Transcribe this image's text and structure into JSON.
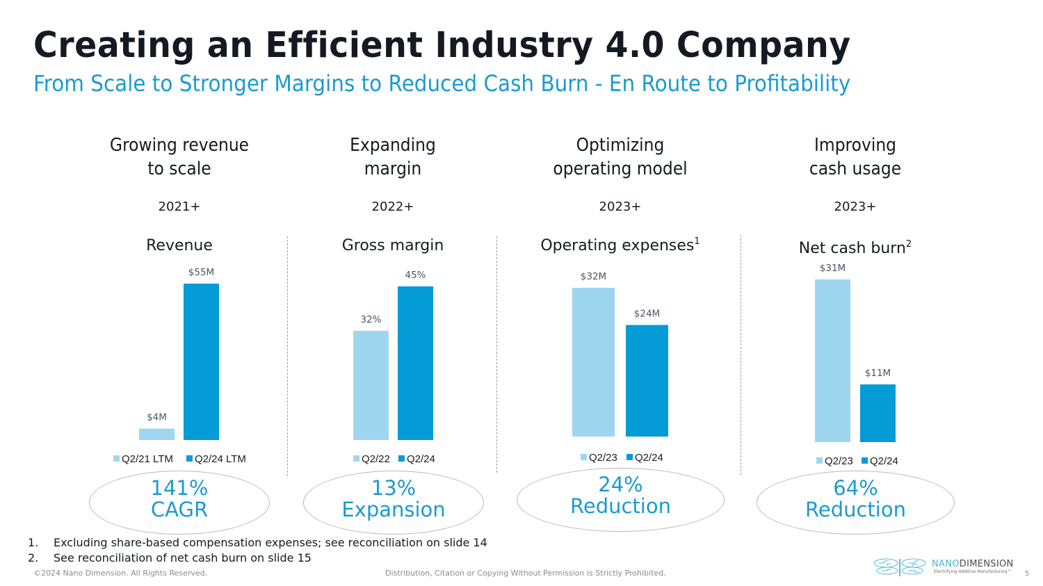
{
  "header": {
    "title": "Creating an Efficient Industry 4.0 Company",
    "subtitle": "From Scale to Stronger Margins to Reduced Cash Burn - En Route to Profitability"
  },
  "colors": {
    "accent": "#1b9ad1",
    "bar_prior": "#9fd6ef",
    "bar_current": "#049bd6",
    "title": "#141a22"
  },
  "columns": [
    {
      "heading_line1": "Growing revenue",
      "heading_line2": "to scale",
      "year": "2021+",
      "metric": "Revenue",
      "metric_sup": "",
      "callout_line1": "141%",
      "callout_line2": "CAGR"
    },
    {
      "heading_line1": "Expanding",
      "heading_line2": "margin",
      "year": "2022+",
      "metric": "Gross margin",
      "metric_sup": "",
      "callout_line1": "13%",
      "callout_line2": "Expansion"
    },
    {
      "heading_line1": "Optimizing",
      "heading_line2": "operating model",
      "year": "2023+",
      "metric": "Operating expenses",
      "metric_sup": "1",
      "callout_line1": "24%",
      "callout_line2": "Reduction"
    },
    {
      "heading_line1": "Improving",
      "heading_line2": "cash usage",
      "year": "2023+",
      "metric": "Net cash burn",
      "metric_sup": "2",
      "callout_line1": "64%",
      "callout_line2": "Reduction"
    }
  ],
  "chart_data": [
    {
      "type": "bar",
      "title": "Revenue",
      "categories": [
        "Q2/21 LTM",
        "Q2/24 LTM"
      ],
      "values": [
        4,
        55
      ],
      "labels": [
        "$4M",
        "$55M"
      ],
      "unit": "$M",
      "ylim": [
        0,
        55
      ],
      "legend": "bottom",
      "grid": false
    },
    {
      "type": "bar",
      "title": "Gross margin",
      "categories": [
        "Q2/22",
        "Q2/24"
      ],
      "values": [
        32,
        45
      ],
      "labels": [
        "32%",
        "45%"
      ],
      "unit": "%",
      "ylim": [
        0,
        45
      ],
      "legend": "bottom",
      "grid": false
    },
    {
      "type": "bar",
      "title": "Operating expenses",
      "categories": [
        "Q2/23",
        "Q2/24"
      ],
      "values": [
        32,
        24
      ],
      "labels": [
        "$32M",
        "$24M"
      ],
      "unit": "$M",
      "ylim": [
        0,
        32
      ],
      "legend": "bottom",
      "grid": false
    },
    {
      "type": "bar",
      "title": "Net cash burn",
      "categories": [
        "Q2/23",
        "Q2/24"
      ],
      "values": [
        31,
        11
      ],
      "labels": [
        "$31M",
        "$11M"
      ],
      "unit": "$M",
      "ylim": [
        0,
        31
      ],
      "legend": "bottom",
      "grid": false
    }
  ],
  "footnotes": [
    {
      "num": "1.",
      "text": "Excluding share-based compensation expenses; see reconciliation on slide 14"
    },
    {
      "num": "2.",
      "text": "See reconciliation of net cash burn on slide 15"
    }
  ],
  "footer": {
    "copyright": "©2024 Nano Dimension. All Rights Reserved.",
    "disclaimer": "Distribution, Citation or Copying Without Permission is Strictly Prohibited.",
    "logo_name_part1": "NANO",
    "logo_name_part2": "DIMENSION",
    "logo_tagline": "Electrifying Additive Manufacturing™",
    "logo_icon": "dragonfly-icon",
    "page_number": "5"
  }
}
